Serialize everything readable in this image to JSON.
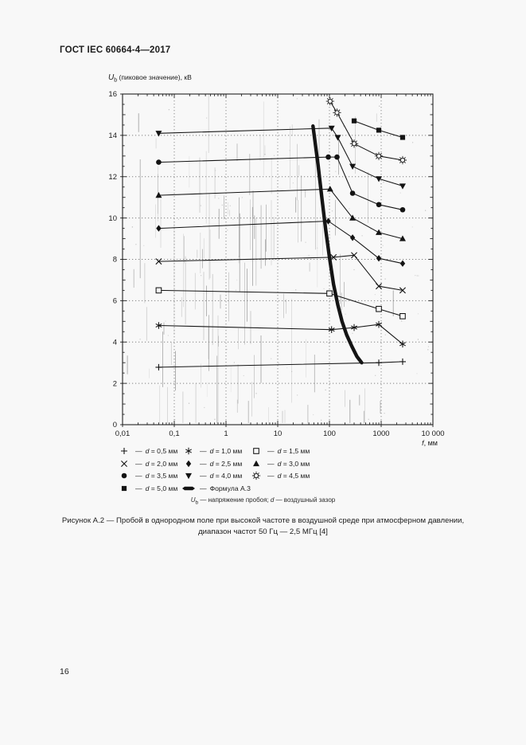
{
  "header": {
    "title": "ГОСТ IEC 60664-4—2017"
  },
  "footer": {
    "page_number": "16"
  },
  "caption": {
    "line1": "Рисунок А.2 — Пробой в однородном поле при высокой частоте в воздушной среде при атмосферном давлении,",
    "line2": "диапазон частот 50 Гц — 2,5 МГц [4]"
  },
  "note_parts": [
    {
      "t": "U",
      "s": "i"
    },
    {
      "t": "b",
      "s": "sub"
    },
    {
      "t": " — напряжение пробоя; ",
      "s": ""
    },
    {
      "t": "d",
      "s": "i"
    },
    {
      "t": " — воздушный зазор",
      "s": ""
    }
  ],
  "chart_data": {
    "type": "line",
    "title": "",
    "x_scale": "log",
    "xlim": [
      0.01,
      10000
    ],
    "ylim": [
      0,
      16
    ],
    "grid": {
      "h_dotted_at": [
        2,
        4,
        6,
        8,
        10,
        12,
        14
      ],
      "v_dotted_at": [
        0.1,
        1,
        10,
        100,
        1000
      ]
    },
    "ylabel_parts": [
      {
        "t": "U",
        "s": "i"
      },
      {
        "t": "b",
        "s": "sub"
      },
      {
        "t": " (пиковое значение), кВ",
        "s": ""
      }
    ],
    "xlabel_parts": [
      {
        "t": "f",
        "s": "i"
      },
      {
        "t": ", мм",
        "s": ""
      }
    ],
    "x_ticks": [
      {
        "v": 0.01,
        "label": "0,01"
      },
      {
        "v": 0.1,
        "label": "0,1"
      },
      {
        "v": 1,
        "label": "1"
      },
      {
        "v": 10,
        "label": "10"
      },
      {
        "v": 100,
        "label": "100"
      },
      {
        "v": 1000,
        "label": "1000"
      },
      {
        "v": 10000,
        "label": "10 000"
      }
    ],
    "y_ticks": [
      {
        "v": 0,
        "label": "0"
      },
      {
        "v": 2,
        "label": "2"
      },
      {
        "v": 4,
        "label": "4"
      },
      {
        "v": 6,
        "label": "6"
      },
      {
        "v": 8,
        "label": "8"
      },
      {
        "v": 10,
        "label": "10"
      },
      {
        "v": 12,
        "label": "12"
      },
      {
        "v": 14,
        "label": "14"
      },
      {
        "v": 16,
        "label": "16"
      }
    ],
    "series": [
      {
        "id": "d05",
        "name": "d = 0,5 мм",
        "marker": "plus",
        "points": [
          [
            0.05,
            2.78
          ],
          [
            900,
            3.0
          ],
          [
            2600,
            3.05
          ]
        ]
      },
      {
        "id": "d10",
        "name": "d = 1,0 мм",
        "marker": "star6",
        "points": [
          [
            0.05,
            4.8
          ],
          [
            110,
            4.6
          ],
          [
            300,
            4.7
          ],
          [
            900,
            4.85
          ],
          [
            2600,
            3.9
          ]
        ]
      },
      {
        "id": "d15",
        "name": "d = 1,5 мм",
        "marker": "square-open",
        "points": [
          [
            0.05,
            6.5
          ],
          [
            100,
            6.35
          ],
          [
            900,
            5.6
          ],
          [
            2600,
            5.25
          ]
        ]
      },
      {
        "id": "d20",
        "name": "d = 2,0 мм",
        "marker": "x",
        "points": [
          [
            0.05,
            7.9
          ],
          [
            120,
            8.1
          ],
          [
            300,
            8.2
          ],
          [
            900,
            6.7
          ],
          [
            2600,
            6.5
          ]
        ]
      },
      {
        "id": "d25",
        "name": "d = 2,5 мм",
        "marker": "diamond",
        "points": [
          [
            0.05,
            9.5
          ],
          [
            95,
            9.85
          ],
          [
            280,
            9.05
          ],
          [
            900,
            8.05
          ],
          [
            2600,
            7.8
          ]
        ]
      },
      {
        "id": "d30",
        "name": "d = 3,0 мм",
        "marker": "triangle-up",
        "points": [
          [
            0.05,
            11.1
          ],
          [
            103,
            11.4
          ],
          [
            280,
            10.0
          ],
          [
            900,
            9.3
          ],
          [
            2600,
            9.0
          ]
        ]
      },
      {
        "id": "d35",
        "name": "d = 3,5 мм",
        "marker": "circle",
        "points": [
          [
            0.05,
            12.7
          ],
          [
            95,
            12.95
          ],
          [
            140,
            12.95
          ],
          [
            280,
            11.2
          ],
          [
            900,
            10.65
          ],
          [
            2600,
            10.4
          ]
        ]
      },
      {
        "id": "d40",
        "name": "d = 4,0 мм",
        "marker": "triangle-down",
        "points": [
          [
            0.05,
            14.1
          ],
          [
            110,
            14.35
          ],
          [
            145,
            13.9
          ],
          [
            280,
            12.5
          ],
          [
            900,
            11.9
          ],
          [
            2600,
            11.55
          ]
        ]
      },
      {
        "id": "d45",
        "name": "d = 4,5 мм",
        "marker": "sun",
        "points": [
          [
            103,
            15.65
          ],
          [
            140,
            15.1
          ],
          [
            300,
            13.6
          ],
          [
            900,
            13.0
          ],
          [
            2600,
            12.8
          ]
        ]
      },
      {
        "id": "d50",
        "name": "d = 5,0 мм",
        "marker": "square-filled",
        "points": [
          [
            300,
            14.7
          ],
          [
            900,
            14.25
          ],
          [
            2600,
            13.9
          ]
        ]
      },
      {
        "id": "formula",
        "name": "Формула А.3",
        "marker": "thick-line",
        "points": [
          [
            48,
            14.45
          ],
          [
            60,
            12.6
          ],
          [
            72,
            10.9
          ],
          [
            85,
            9.4
          ],
          [
            100,
            8.1
          ],
          [
            120,
            6.8
          ],
          [
            145,
            5.8
          ],
          [
            175,
            5.0
          ],
          [
            215,
            4.35
          ],
          [
            270,
            3.8
          ],
          [
            340,
            3.3
          ],
          [
            420,
            3.0
          ]
        ]
      }
    ]
  },
  "legend": {
    "separator": "—",
    "items": [
      {
        "id": "d05",
        "marker": "plus",
        "var": "d",
        "rest": " = 0,5 мм"
      },
      {
        "id": "d10",
        "marker": "star6",
        "var": "d",
        "rest": " = 1,0 мм"
      },
      {
        "id": "d15",
        "marker": "square-open",
        "var": "d",
        "rest": " = 1,5 мм"
      },
      {
        "id": "d20",
        "marker": "x",
        "var": "d",
        "rest": " = 2,0 мм"
      },
      {
        "id": "d25",
        "marker": "diamond",
        "var": "d",
        "rest": " = 2,5 мм"
      },
      {
        "id": "d30",
        "marker": "triangle-up",
        "var": "d",
        "rest": " = 3,0 мм"
      },
      {
        "id": "d35",
        "marker": "circle",
        "var": "d",
        "rest": " = 3,5 мм"
      },
      {
        "id": "d40",
        "marker": "triangle-down",
        "var": "d",
        "rest": " = 4,0 мм"
      },
      {
        "id": "d45",
        "marker": "sun",
        "var": "d",
        "rest": " = 4,5 мм"
      },
      {
        "id": "d50",
        "marker": "square-filled",
        "var": "d",
        "rest": " = 5,0 мм"
      },
      {
        "id": "formula",
        "marker": "thick-line",
        "var": "",
        "rest": "Формула А.3"
      }
    ]
  }
}
